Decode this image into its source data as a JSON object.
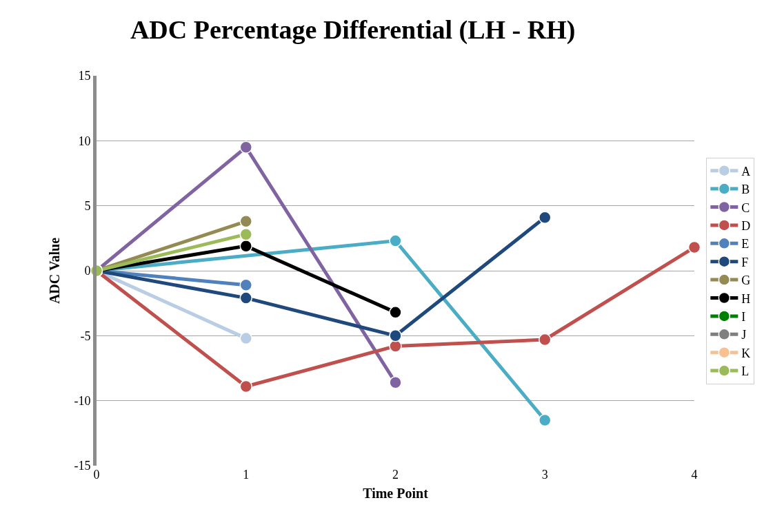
{
  "chart_data": {
    "type": "line",
    "title": "ADC Percentage Differential (LH - RH)",
    "xlabel": "Time Point",
    "ylabel": "ADC Value",
    "xlim": [
      0,
      4
    ],
    "xticks": [
      0,
      1,
      2,
      3,
      4
    ],
    "ylim": [
      -15,
      15
    ],
    "yticks": [
      -15,
      -10,
      -5,
      0,
      5,
      10,
      15
    ],
    "grid": "y",
    "legend": "right",
    "marker": "circle",
    "line_style": "solid",
    "series": [
      {
        "name": "A",
        "color": "#b9cde5",
        "x": [
          0,
          1
        ],
        "values": [
          0,
          -5.2
        ]
      },
      {
        "name": "B",
        "color": "#4bacc6",
        "x": [
          0,
          2,
          3
        ],
        "values": [
          0,
          2.3,
          -11.5
        ]
      },
      {
        "name": "C",
        "color": "#8064a2",
        "x": [
          0,
          1,
          2
        ],
        "values": [
          0,
          9.5,
          -8.6
        ]
      },
      {
        "name": "D",
        "color": "#c0504d",
        "x": [
          0,
          1,
          2,
          3,
          4
        ],
        "values": [
          0,
          -8.9,
          -5.8,
          -5.3,
          1.8
        ]
      },
      {
        "name": "E",
        "color": "#4f81bd",
        "x": [
          0,
          1
        ],
        "values": [
          0,
          -1.1
        ]
      },
      {
        "name": "F",
        "color": "#1f497d",
        "x": [
          0,
          1,
          2,
          3
        ],
        "values": [
          0,
          -2.1,
          -5.0,
          4.1
        ]
      },
      {
        "name": "G",
        "color": "#948a54",
        "x": [
          0,
          1
        ],
        "values": [
          0,
          3.8
        ]
      },
      {
        "name": "H",
        "color": "#000000",
        "x": [
          0,
          1,
          2
        ],
        "values": [
          0,
          1.9,
          -3.2
        ]
      },
      {
        "name": "I",
        "color": "#008000"
      },
      {
        "name": "J",
        "color": "#7f7f7f"
      },
      {
        "name": "K",
        "color": "#fac090"
      },
      {
        "name": "L",
        "color": "#9bbb59",
        "x": [
          0,
          1
        ],
        "values": [
          0,
          2.8
        ]
      }
    ]
  }
}
